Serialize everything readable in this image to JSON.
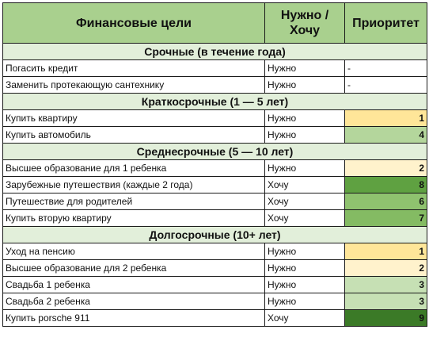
{
  "header": {
    "col1": "Финансовые цели",
    "col2_line1": "Нужно /",
    "col2_line2": "Хочу",
    "col3": "Приоритет"
  },
  "colors": {
    "header_bg": "#a9d08e",
    "section_bg": "#e2efda",
    "priority_1": "#ffe699",
    "priority_2": "#fff2cc",
    "priority_3": "#c6e0b4",
    "priority_4": "#b4d69c",
    "priority_6": "#8fc26f",
    "priority_7": "#84bb63",
    "priority_8": "#5fa141",
    "priority_9": "#3b7a27"
  },
  "sections": [
    {
      "title": "Срочные (в течение года)",
      "rows": [
        {
          "goal": "Погасить кредит",
          "need": "Нужно",
          "priority": "-",
          "color": ""
        },
        {
          "goal": "Заменить протекающую сантехнику",
          "need": "Нужно",
          "priority": "-",
          "color": ""
        }
      ]
    },
    {
      "title": "Краткосрочные (1 — 5 лет)",
      "rows": [
        {
          "goal": "Купить квартиру",
          "need": "Нужно",
          "priority": "1",
          "color": "#ffe699"
        },
        {
          "goal": "Купить автомобиль",
          "need": "Нужно",
          "priority": "4",
          "color": "#b4d69c"
        }
      ]
    },
    {
      "title": "Среднесрочные (5 — 10 лет)",
      "rows": [
        {
          "goal": "Высшее образование для 1 ребенка",
          "need": "Нужно",
          "priority": "2",
          "color": "#fff2cc"
        },
        {
          "goal": "Зарубежные путешествия (каждые 2 года)",
          "need": "Хочу",
          "priority": "8",
          "color": "#5fa141"
        },
        {
          "goal": "Путешествие для родителей",
          "need": "Хочу",
          "priority": "6",
          "color": "#8fc26f"
        },
        {
          "goal": "Купить вторую квартиру",
          "need": "Хочу",
          "priority": "7",
          "color": "#84bb63"
        }
      ]
    },
    {
      "title": "Долгосрочные (10+ лет)",
      "rows": [
        {
          "goal": "Уход на пенсию",
          "need": "Нужно",
          "priority": "1",
          "color": "#ffe699"
        },
        {
          "goal": "Высшее образование для 2 ребенка",
          "need": "Нужно",
          "priority": "2",
          "color": "#fff2cc"
        },
        {
          "goal": "Свадьба 1 ребенка",
          "need": "Нужно",
          "priority": "3",
          "color": "#c6e0b4"
        },
        {
          "goal": "Свадьба 2 ребенка",
          "need": "Нужно",
          "priority": "3",
          "color": "#c6e0b4"
        },
        {
          "goal": "Купить porsche 911",
          "need": "Хочу",
          "priority": "9",
          "color": "#3b7a27"
        }
      ]
    }
  ]
}
